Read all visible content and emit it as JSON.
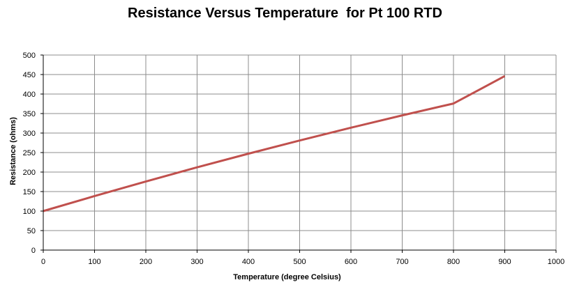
{
  "chart_data": {
    "type": "line",
    "title": "Resistance Versus Temperature  for Pt 100 RTD",
    "xlabel": "Temperature (degree Celsius)",
    "ylabel": "Resistance (ohms)",
    "xlim": [
      0,
      1000
    ],
    "ylim": [
      0,
      500
    ],
    "xticks": [
      "0",
      "100",
      "200",
      "300",
      "400",
      "500",
      "600",
      "700",
      "800",
      "900",
      "1000"
    ],
    "yticks": [
      "0",
      "50",
      "100",
      "150",
      "200",
      "250",
      "300",
      "350",
      "400",
      "450",
      "500"
    ],
    "grid": true,
    "legend": "none",
    "series": [
      {
        "color": "#c0504d",
        "x": [
          0,
          100,
          200,
          300,
          400,
          500,
          600,
          700,
          800,
          900
        ],
        "y": [
          100,
          138.5,
          175.8,
          212.1,
          247.1,
          280.9,
          313.7,
          345.3,
          375.7,
          446
        ]
      }
    ]
  }
}
